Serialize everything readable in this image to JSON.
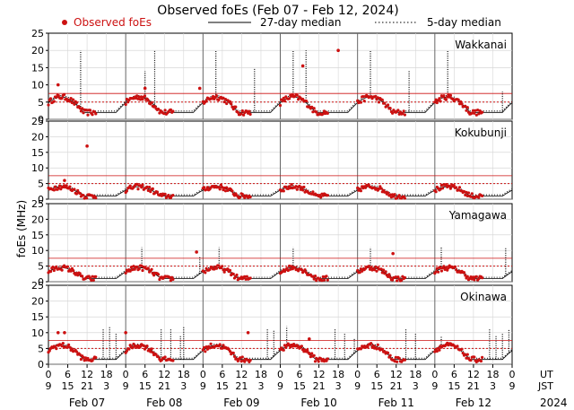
{
  "chart_data": {
    "type": "scatter",
    "title": "Observed foEs (Feb 07 - Feb 12, 2024)",
    "legend": [
      {
        "name": "Observed foEs",
        "kind": "dot",
        "color": "#cc1111"
      },
      {
        "name": "27-day median",
        "kind": "solid",
        "color": "#000000"
      },
      {
        "name": "5-day median",
        "kind": "dotted",
        "color": "#000000"
      }
    ],
    "ylabel": "foEs (MHz)",
    "ylim": [
      0,
      25
    ],
    "yticks": [
      "0",
      "5",
      "10",
      "15",
      "20",
      "25"
    ],
    "xlim": [
      0,
      144
    ],
    "ut_label": "UT",
    "jst_label": "JST",
    "ut_ticks": [
      "0",
      "6",
      "12",
      "18",
      "0",
      "6",
      "12",
      "18",
      "0",
      "6",
      "12",
      "18",
      "0",
      "6",
      "12",
      "18",
      "0",
      "6",
      "12",
      "18",
      "0",
      "6",
      "12",
      "18",
      "0"
    ],
    "jst_ticks": [
      "9",
      "15",
      "21",
      "3",
      "9",
      "15",
      "21",
      "3",
      "9",
      "15",
      "21",
      "3",
      "9",
      "15",
      "21",
      "3",
      "9",
      "15",
      "21",
      "3",
      "9",
      "15",
      "21",
      "3",
      "9"
    ],
    "days": [
      "Feb 07",
      "Feb 08",
      "Feb 09",
      "Feb 10",
      "Feb 11",
      "Feb 12"
    ],
    "year": "2024",
    "ref_lines": [
      5,
      7.5
    ],
    "panels": [
      {
        "station": "Wakkanai",
        "base": 2.0,
        "width": 4.5,
        "spikes": [
          [
            10,
            20
          ],
          [
            30,
            14
          ],
          [
            33,
            20
          ],
          [
            52,
            20
          ],
          [
            64,
            15
          ],
          [
            76,
            20
          ],
          [
            80,
            20
          ],
          [
            100,
            20
          ],
          [
            112,
            14
          ],
          [
            124,
            20
          ],
          [
            141,
            8
          ]
        ],
        "outliers": [
          [
            3,
            10
          ],
          [
            30,
            9
          ],
          [
            47,
            9
          ],
          [
            79,
            15.5
          ],
          [
            90,
            20
          ]
        ]
      },
      {
        "station": "Kokubunji",
        "base": 1.0,
        "width": 3.0,
        "spikes": [],
        "outliers": [
          [
            12,
            17
          ],
          [
            5,
            6
          ]
        ]
      },
      {
        "station": "Yamagawa",
        "base": 1.0,
        "width": 3.5,
        "spikes": [
          [
            29,
            11
          ],
          [
            47,
            8
          ],
          [
            53,
            11
          ],
          [
            76,
            11
          ],
          [
            100,
            11
          ],
          [
            122,
            11
          ],
          [
            142,
            11
          ]
        ],
        "outliers": [
          [
            107,
            9
          ],
          [
            46,
            9.5
          ]
        ]
      },
      {
        "station": "Okinawa",
        "base": 1.5,
        "width": 4.5,
        "spikes": [
          [
            17,
            11
          ],
          [
            19,
            12
          ],
          [
            21,
            10
          ],
          [
            35,
            11
          ],
          [
            38,
            11
          ],
          [
            41,
            9
          ],
          [
            42,
            12
          ],
          [
            68,
            11
          ],
          [
            70,
            11
          ],
          [
            74,
            12
          ],
          [
            89,
            11
          ],
          [
            92,
            10
          ],
          [
            95,
            8
          ],
          [
            111,
            11
          ],
          [
            114,
            10
          ],
          [
            122,
            9
          ],
          [
            137,
            11
          ],
          [
            139,
            9
          ],
          [
            141,
            10
          ],
          [
            143,
            11
          ]
        ],
        "outliers": [
          [
            3,
            10
          ],
          [
            5,
            10
          ],
          [
            24,
            10
          ],
          [
            62,
            10
          ],
          [
            81,
            8
          ]
        ]
      }
    ]
  }
}
